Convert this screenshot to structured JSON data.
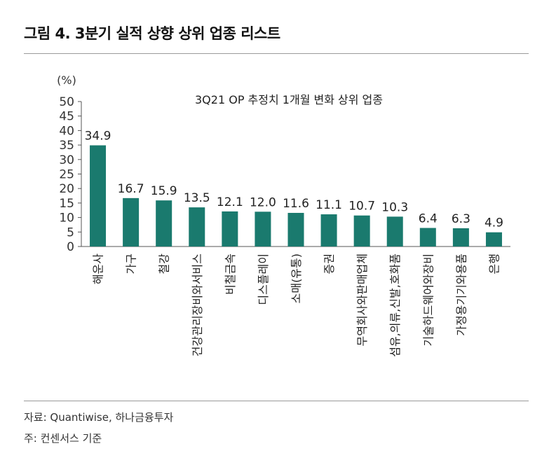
{
  "figure": {
    "title": "그림 4. 3분기 실적 상향 상위 업종 리스트",
    "source": "자료: Quantiwise, 하나금융투자",
    "note": "주: 컨센서스 기준"
  },
  "chart_data": {
    "type": "bar",
    "title": "3Q21 OP 추정치 1개월 변화 상위 업종",
    "unit_label": "(%)",
    "xlabel": "",
    "ylabel": "",
    "ylim": [
      0,
      50
    ],
    "yticks": [
      0,
      5,
      10,
      15,
      20,
      25,
      30,
      35,
      40,
      45,
      50
    ],
    "categories": [
      "해운사",
      "가구",
      "철강",
      "건강관리장비와서비스",
      "비철금속",
      "디스플레이",
      "소매(유통)",
      "증권",
      "무역회사와판매업체",
      "섬유,의류,신발,호화품",
      "기술하드웨어와장비",
      "가정용기기와용품",
      "은행"
    ],
    "values": [
      34.9,
      16.7,
      15.9,
      13.5,
      12.1,
      12.0,
      11.6,
      11.1,
      10.7,
      10.3,
      6.4,
      6.3,
      4.9
    ],
    "value_labels": [
      "34.9",
      "16.7",
      "15.9",
      "13.5",
      "12.1",
      "12.0",
      "11.6",
      "11.1",
      "10.7",
      "10.3",
      "6.4",
      "6.3",
      "4.9"
    ],
    "bar_color": "#1a7a6e",
    "grid": false,
    "legend": "none"
  }
}
